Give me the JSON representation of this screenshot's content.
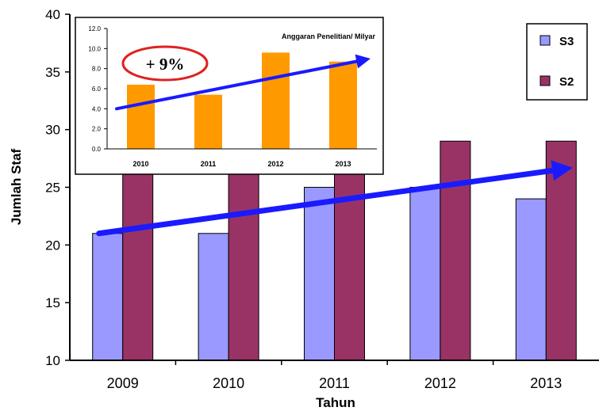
{
  "colors": {
    "s3": "#9999ff",
    "s2": "#993366",
    "inset_bar": "#ff9900",
    "arrow": "#1a1aff",
    "badge_ring": "#e02020"
  },
  "chart_data": [
    {
      "type": "bar",
      "xlabel": "Tahun",
      "ylabel": "Jumlah Staf",
      "categories": [
        "2009",
        "2010",
        "2011",
        "2012",
        "2013"
      ],
      "series": [
        {
          "name": "S3",
          "values": [
            21,
            21,
            25,
            25,
            24
          ]
        },
        {
          "name": "S2",
          "values": [
            28,
            28,
            28,
            29,
            29
          ]
        }
      ],
      "ylim": [
        10,
        40
      ],
      "yticks": [
        "10",
        "15",
        "20",
        "25",
        "30",
        "35",
        "40"
      ],
      "legend": "top-right",
      "grid": false,
      "trend_arrow": {
        "from": 21,
        "to": 26.7
      }
    },
    {
      "type": "bar",
      "title": "Anggaran Penelitian/ Milyar",
      "categories": [
        "2010",
        "2011",
        "2012",
        "2013"
      ],
      "values": [
        6.4,
        5.4,
        9.6,
        8.7
      ],
      "ylim": [
        0,
        12
      ],
      "yticks": [
        "0.0",
        "2.0",
        "4.0",
        "6.0",
        "8.0",
        "10.0",
        "12.0"
      ],
      "annotation": "+ 9%",
      "grid": false
    }
  ]
}
